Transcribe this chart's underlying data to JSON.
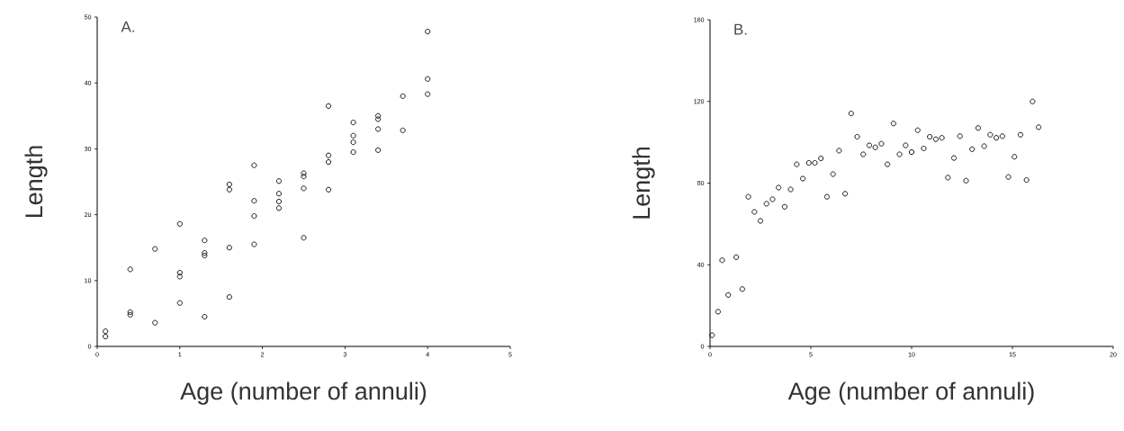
{
  "chart_data": [
    {
      "type": "scatter",
      "title": "A.",
      "xlabel": "Age (number of annuli)",
      "ylabel": "Length",
      "marker": "circle",
      "x": [
        0.1,
        0.1,
        0.4,
        0.4,
        0.4,
        0.7,
        0.7,
        1.0,
        1.0,
        1.0,
        1.0,
        1.3,
        1.3,
        1.3,
        1.3,
        1.6,
        1.6,
        1.6,
        1.6,
        1.9,
        1.9,
        1.9,
        1.9,
        2.2,
        2.2,
        2.2,
        2.2,
        2.5,
        2.5,
        2.5,
        2.5,
        2.8,
        2.8,
        2.8,
        2.8,
        3.1,
        3.1,
        3.1,
        3.1,
        3.4,
        3.4,
        3.4,
        3.4,
        3.7,
        3.7,
        4.0,
        4.0,
        4.0
      ],
      "series": [
        {
          "color": "#000000",
          "values": [
            1.5,
            2.3,
            11.7,
            5.2,
            4.8,
            14.8,
            3.6,
            18.6,
            11.2,
            10.6,
            6.6,
            16.1,
            14.2,
            13.8,
            4.5,
            24.6,
            23.8,
            15.0,
            7.5,
            27.5,
            22.1,
            19.8,
            15.5,
            25.1,
            23.2,
            22.0,
            21.0,
            26.3,
            25.8,
            24.0,
            16.5,
            36.5,
            29.0,
            28.0,
            23.8,
            34.0,
            32.0,
            31.0,
            29.5,
            35.0,
            34.5,
            33.0,
            29.8,
            38.0,
            32.8,
            47.8,
            40.6,
            38.3
          ]
        }
      ],
      "xlim": [
        0,
        5
      ],
      "ylim": [
        0,
        50
      ],
      "xticks": [
        0,
        1,
        2,
        3,
        4,
        5
      ],
      "yticks": [
        0,
        10,
        20,
        30,
        40,
        50
      ]
    },
    {
      "type": "scatter",
      "title": "B.",
      "xlabel": "Age (number of annuli)",
      "ylabel": "Length",
      "marker": "circle",
      "x": [
        0.1,
        0.4,
        0.6,
        0.9,
        1.3,
        1.6,
        1.9,
        2.2,
        2.5,
        2.8,
        3.1,
        3.4,
        3.7,
        4.0,
        4.3,
        4.6,
        4.9,
        5.2,
        5.5,
        5.8,
        6.1,
        6.4,
        6.7,
        7.0,
        7.3,
        7.6,
        7.9,
        8.2,
        8.5,
        8.8,
        9.1,
        9.4,
        9.7,
        10.0,
        10.3,
        10.6,
        10.9,
        11.2,
        11.5,
        11.8,
        12.1,
        12.4,
        12.7,
        13.0,
        13.3,
        13.6,
        13.9,
        14.2,
        14.5,
        14.8,
        15.1,
        15.4,
        15.7,
        16.0,
        16.3
      ],
      "series": [
        {
          "color": "#000000",
          "values": [
            5.5,
            17,
            42.2,
            25.2,
            43.7,
            28.1,
            73.3,
            65.9,
            61.5,
            69.9,
            72.1,
            77.8,
            68.4,
            76.9,
            89.2,
            82.2,
            89.9,
            89.9,
            92.1,
            73.3,
            84.4,
            95.9,
            74.8,
            114.1,
            102.7,
            94.1,
            98.5,
            97.5,
            99.3,
            89.2,
            109.2,
            94.1,
            98.5,
            95.2,
            105.9,
            97.0,
            102.7,
            101.5,
            102.2,
            82.7,
            92.3,
            103.0,
            81.2,
            96.6,
            107.0,
            98.1,
            103.7,
            102.2,
            103.0,
            83.0,
            92.9,
            103.7,
            81.5,
            120.0,
            107.4
          ]
        }
      ],
      "xlim": [
        0,
        20
      ],
      "ylim": [
        0,
        160
      ],
      "xticks": [
        0,
        5,
        10,
        15,
        20
      ],
      "yticks": [
        0,
        40,
        80,
        120,
        160
      ]
    }
  ]
}
